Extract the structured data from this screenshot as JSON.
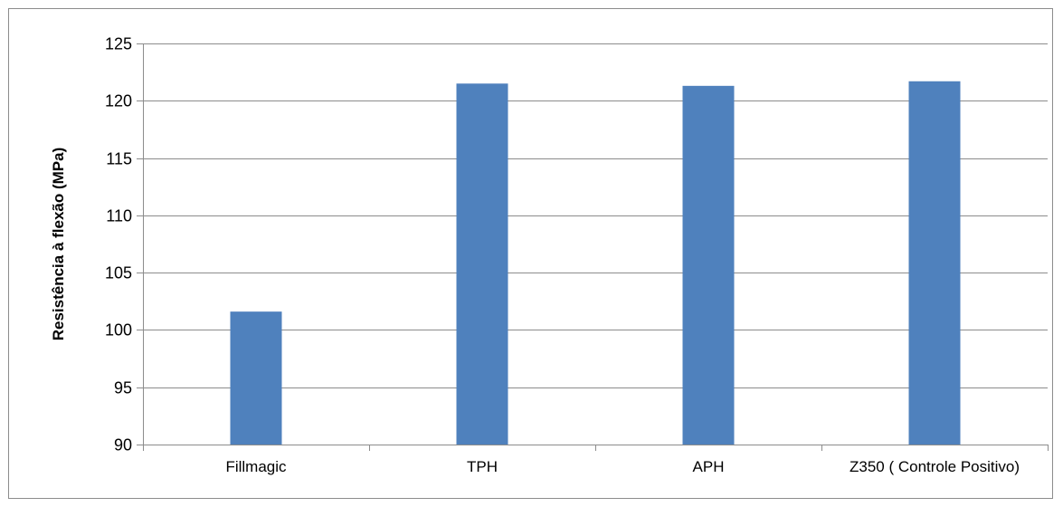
{
  "chart_data": {
    "type": "bar",
    "categories": [
      "Fillmagic",
      "TPH",
      "APH",
      "Z350 ( Controle Positivo)"
    ],
    "values": [
      101.6,
      121.5,
      121.3,
      121.7
    ],
    "title": "",
    "xlabel": "",
    "ylabel": "Resistência à flexão (MPa)",
    "ylim": [
      90,
      125
    ],
    "yticks": [
      90,
      95,
      100,
      105,
      110,
      115,
      120,
      125
    ],
    "grid": true,
    "legend": "none",
    "bar_color": "#4f81bd",
    "grid_color": "#8c8c8c"
  }
}
